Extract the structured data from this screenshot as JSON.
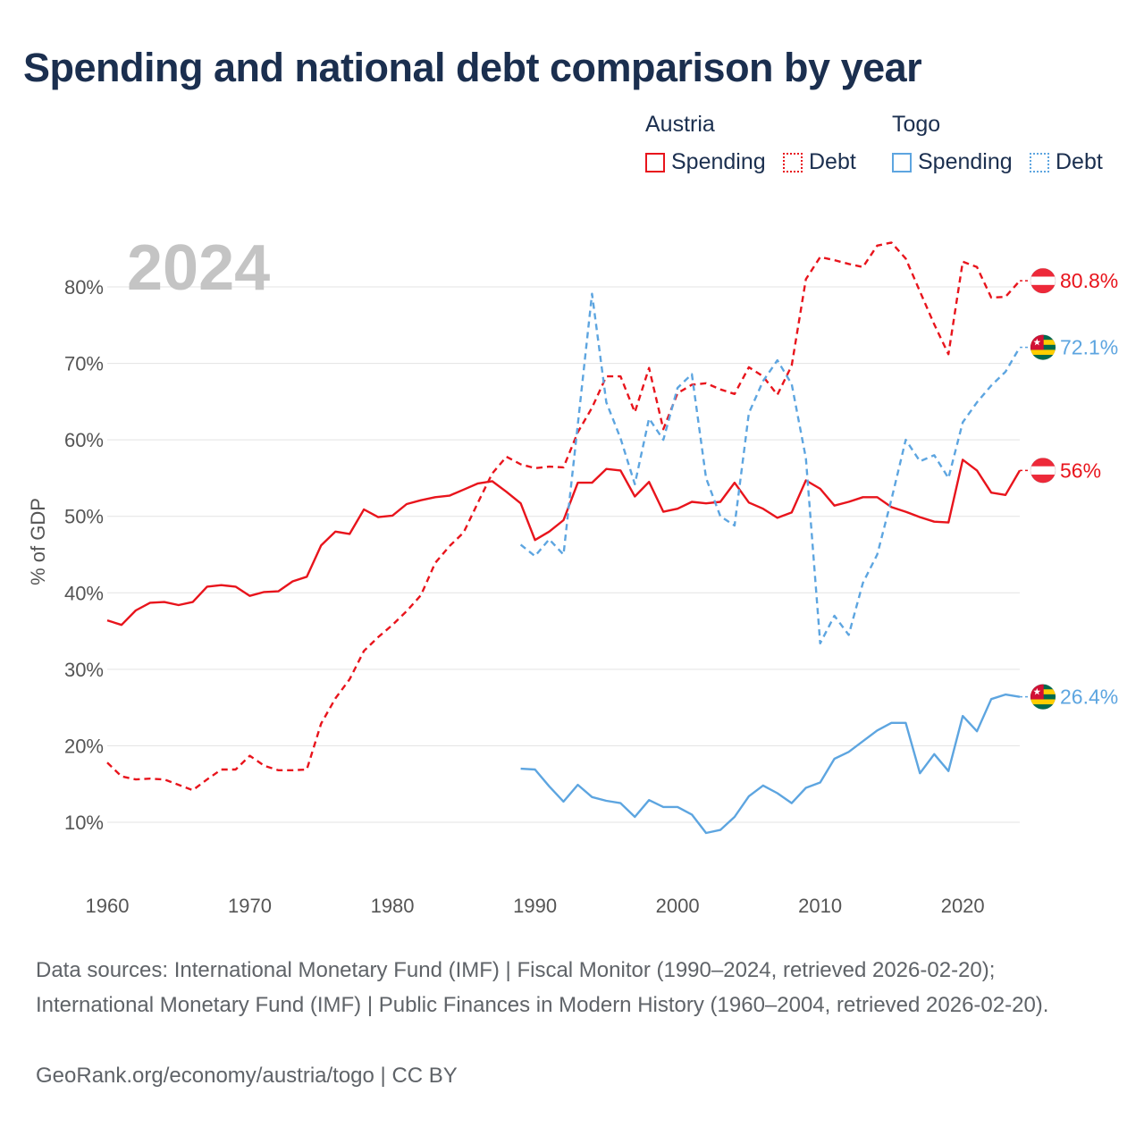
{
  "title": "Spending and national debt comparison by year",
  "legend": {
    "groups": [
      {
        "country": "Austria",
        "color": "#e8141c",
        "items": [
          {
            "label": "Spending",
            "style": "solid"
          },
          {
            "label": "Debt",
            "style": "dotted"
          }
        ]
      },
      {
        "country": "Togo",
        "color": "#5da5e0",
        "items": [
          {
            "label": "Spending",
            "style": "solid"
          },
          {
            "label": "Debt",
            "style": "dotted"
          }
        ]
      }
    ]
  },
  "footer": {
    "sources": "Data sources: International Monetary Fund (IMF) | Fiscal Monitor (1990–2024, retrieved 2026-02-20); International Monetary Fund (IMF) | Public Finances in Modern History (1960–2004, retrieved 2026-02-20).",
    "credit": "GeoRank.org/economy/austria/togo | CC BY"
  },
  "chart_data": {
    "type": "line",
    "title": "Spending and national debt comparison by year",
    "year_label": "2024",
    "xlabel": "",
    "ylabel": "% of GDP",
    "xlim": [
      1960,
      2024
    ],
    "ylim": [
      0,
      85
    ],
    "x_ticks": [
      1960,
      1970,
      1980,
      1990,
      2000,
      2010,
      2020
    ],
    "y_ticks": [
      {
        "value": 10,
        "label": "10%"
      },
      {
        "value": 20,
        "label": "20%"
      },
      {
        "value": 30,
        "label": "30%"
      },
      {
        "value": 40,
        "label": "40%"
      },
      {
        "value": 50,
        "label": "50%"
      },
      {
        "value": 60,
        "label": "60%"
      },
      {
        "value": 70,
        "label": "70%"
      },
      {
        "value": 80,
        "label": "80%"
      }
    ],
    "grid": true,
    "series": [
      {
        "name": "Austria Spending",
        "country": "Austria",
        "metric": "Spending",
        "color": "#e8141c",
        "dash": "solid",
        "flag": "austria",
        "end_label": "56%",
        "end_value": 56.0,
        "x": [
          1960,
          1961,
          1962,
          1963,
          1964,
          1965,
          1966,
          1967,
          1968,
          1969,
          1970,
          1971,
          1972,
          1973,
          1974,
          1975,
          1976,
          1977,
          1978,
          1979,
          1980,
          1981,
          1982,
          1983,
          1984,
          1985,
          1986,
          1987,
          1988,
          1989,
          1990,
          1991,
          1992,
          1993,
          1994,
          1995,
          1996,
          1997,
          1998,
          1999,
          2000,
          2001,
          2002,
          2003,
          2004,
          2005,
          2006,
          2007,
          2008,
          2009,
          2010,
          2011,
          2012,
          2013,
          2014,
          2015,
          2016,
          2017,
          2018,
          2019,
          2020,
          2021,
          2022,
          2023,
          2024
        ],
        "values": [
          36.4,
          35.8,
          37.7,
          38.7,
          38.8,
          38.4,
          38.8,
          40.8,
          41.0,
          40.8,
          39.6,
          40.1,
          40.2,
          41.5,
          42.1,
          46.2,
          48.0,
          47.7,
          50.9,
          49.9,
          50.1,
          51.6,
          52.1,
          52.5,
          52.7,
          53.5,
          54.3,
          54.6,
          53.2,
          51.7,
          46.9,
          48.0,
          49.5,
          54.4,
          54.4,
          56.2,
          56.0,
          52.6,
          54.5,
          50.6,
          51.0,
          51.9,
          51.7,
          51.9,
          54.4,
          51.8,
          51.0,
          49.8,
          50.5,
          54.7,
          53.6,
          51.4,
          51.9,
          52.5,
          52.5,
          51.2,
          50.6,
          49.9,
          49.3,
          49.2,
          57.4,
          56.0,
          53.1,
          52.8,
          56.0
        ]
      },
      {
        "name": "Austria Debt",
        "country": "Austria",
        "metric": "Debt",
        "color": "#e8141c",
        "dash": "dashed",
        "flag": "austria",
        "end_label": "80.8%",
        "end_value": 80.8,
        "x": [
          1960,
          1961,
          1962,
          1963,
          1964,
          1965,
          1966,
          1967,
          1968,
          1969,
          1970,
          1971,
          1972,
          1973,
          1974,
          1975,
          1976,
          1977,
          1978,
          1979,
          1980,
          1981,
          1982,
          1983,
          1984,
          1985,
          1986,
          1987,
          1988,
          1989,
          1990,
          1991,
          1992,
          1993,
          1994,
          1995,
          1996,
          1997,
          1998,
          1999,
          2000,
          2001,
          2002,
          2003,
          2004,
          2005,
          2006,
          2007,
          2008,
          2009,
          2010,
          2011,
          2012,
          2013,
          2014,
          2015,
          2016,
          2017,
          2018,
          2019,
          2020,
          2021,
          2022,
          2023,
          2024
        ],
        "values": [
          17.8,
          16.0,
          15.6,
          15.7,
          15.6,
          14.9,
          14.2,
          15.6,
          16.9,
          16.9,
          18.7,
          17.4,
          16.8,
          16.8,
          16.9,
          22.9,
          26.2,
          28.7,
          32.4,
          34.2,
          35.8,
          37.6,
          39.7,
          43.9,
          46.1,
          47.9,
          51.8,
          55.6,
          57.8,
          56.8,
          56.3,
          56.5,
          56.4,
          61.0,
          64.2,
          68.3,
          68.3,
          63.6,
          69.4,
          61.4,
          66.1,
          67.2,
          67.4,
          66.6,
          66.0,
          69.5,
          68.3,
          65.9,
          69.7,
          81.0,
          83.9,
          83.5,
          83.0,
          82.6,
          85.4,
          85.8,
          83.7,
          79.4,
          75.1,
          71.2,
          83.3,
          82.6,
          78.6,
          78.7,
          80.8
        ]
      },
      {
        "name": "Togo Spending",
        "country": "Togo",
        "metric": "Spending",
        "color": "#5da5e0",
        "dash": "solid",
        "flag": "togo",
        "end_label": "26.4%",
        "end_value": 26.4,
        "x": [
          1989,
          1990,
          1991,
          1992,
          1993,
          1994,
          1995,
          1996,
          1997,
          1998,
          1999,
          2000,
          2001,
          2002,
          2003,
          2004,
          2005,
          2006,
          2007,
          2008,
          2009,
          2010,
          2011,
          2012,
          2013,
          2014,
          2015,
          2016,
          2017,
          2018,
          2019,
          2020,
          2021,
          2022,
          2023,
          2024
        ],
        "values": [
          17.0,
          16.9,
          14.7,
          12.7,
          14.9,
          13.3,
          12.8,
          12.5,
          10.7,
          12.9,
          12.0,
          12.0,
          11.0,
          8.6,
          9.0,
          10.7,
          13.4,
          14.8,
          13.8,
          12.5,
          14.5,
          15.2,
          18.3,
          19.2,
          20.6,
          22.0,
          23.0,
          23.0,
          16.4,
          18.9,
          16.7,
          23.9,
          21.9,
          26.1,
          26.7,
          26.4
        ]
      },
      {
        "name": "Togo Debt",
        "country": "Togo",
        "metric": "Debt",
        "color": "#5da5e0",
        "dash": "dashed",
        "flag": "togo",
        "end_label": "72.1%",
        "end_value": 72.1,
        "x": [
          1989,
          1990,
          1991,
          1992,
          1993,
          1994,
          1995,
          1996,
          1997,
          1998,
          1999,
          2000,
          2001,
          2002,
          2003,
          2004,
          2005,
          2006,
          2007,
          2008,
          2009,
          2010,
          2011,
          2012,
          2013,
          2014,
          2015,
          2016,
          2017,
          2018,
          2019,
          2020,
          2021,
          2022,
          2023,
          2024
        ],
        "values": [
          46.3,
          44.8,
          47.0,
          45.0,
          62.0,
          79.1,
          64.9,
          60.2,
          54.2,
          62.8,
          60.0,
          66.8,
          68.6,
          55.0,
          50.0,
          48.8,
          63.5,
          67.7,
          70.4,
          67.3,
          57.6,
          33.4,
          37.0,
          34.5,
          41.3,
          45.0,
          52.2,
          60.0,
          57.2,
          58.0,
          55.0,
          62.3,
          64.9,
          67.1,
          68.9,
          72.1
        ]
      }
    ]
  }
}
